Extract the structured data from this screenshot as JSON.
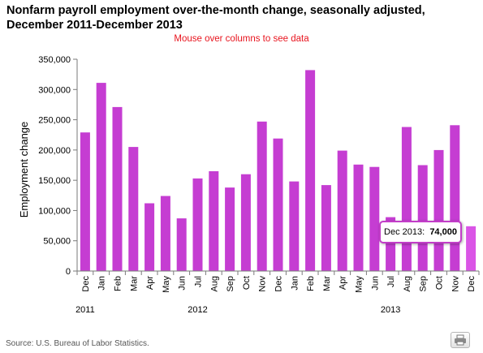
{
  "chart_data": {
    "type": "bar",
    "title": "Nonfarm payroll employment over-the-month change, seasonally adjusted, December 2011-December 2013",
    "subtitle": "Mouse over columns to see data",
    "xlabel": "",
    "ylabel": "Employment change",
    "ylim": [
      0,
      350000
    ],
    "yticks": [
      "0",
      "50,000",
      "100,000",
      "150,000",
      "200,000",
      "250,000",
      "300,000",
      "350,000"
    ],
    "grid": false,
    "categories": [
      "Dec",
      "Jan",
      "Feb",
      "Mar",
      "Apr",
      "May",
      "Jun",
      "Jul",
      "Aug",
      "Sep",
      "Oct",
      "Nov",
      "Dec",
      "Jan",
      "Feb",
      "Mar",
      "Apr",
      "May",
      "Jun",
      "Jul",
      "Aug",
      "Sep",
      "Oct",
      "Nov",
      "Dec"
    ],
    "year_labels": [
      {
        "label": "2011",
        "category_index": 0
      },
      {
        "label": "2012",
        "category_index": 7
      },
      {
        "label": "2013",
        "category_index": 19
      }
    ],
    "values": [
      229000,
      311000,
      271000,
      205000,
      112000,
      124000,
      87000,
      153000,
      165000,
      138000,
      160000,
      247000,
      219000,
      148000,
      332000,
      142000,
      199000,
      176000,
      172000,
      89000,
      238000,
      175000,
      200000,
      241000,
      74000
    ],
    "color": "#c53dd2",
    "highlight_color": "#da55e6"
  },
  "tooltip": {
    "label": "Dec 2013:",
    "value": "74,000",
    "category_index": 24
  },
  "source": "Source: U.S. Bureau of Labor Statistics.",
  "print_icon": "printer-icon"
}
